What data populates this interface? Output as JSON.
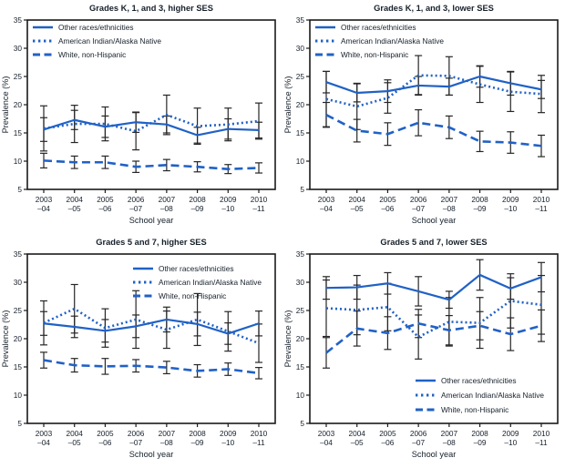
{
  "colors": {
    "line": "#2061C6",
    "error_bar": "#262626",
    "axis": "#1A1A1A",
    "text": "#16202B",
    "background": "#FFFFFF"
  },
  "chart_data": [
    {
      "type": "line",
      "title": "Grades K, 1, and 3, higher SES",
      "xlabel": "School year",
      "ylabel": "Prevalence (%)",
      "ylim": [
        5,
        35
      ],
      "yticks": [
        5,
        10,
        15,
        20,
        25,
        30,
        35
      ],
      "grid": false,
      "legend_position": "top-left",
      "x_labels": [
        [
          "2003",
          "–04"
        ],
        [
          "2004",
          "–05"
        ],
        [
          "2005",
          "–06"
        ],
        [
          "2006",
          "–07"
        ],
        [
          "2007",
          "–08"
        ],
        [
          "2008",
          "–09"
        ],
        [
          "2009",
          "–10"
        ],
        [
          "2010",
          "–11"
        ]
      ],
      "series": [
        {
          "name": "Other races/ethnicities",
          "style": "solid",
          "values": [
            15.6,
            17.3,
            16.1,
            16.9,
            16.5,
            14.6,
            15.7,
            15.5
          ],
          "err": [
            2.1,
            1.7,
            1.9,
            1.8,
            1.5,
            1.4,
            1.8,
            1.4
          ]
        },
        {
          "name": "American Indian/Alaska Native",
          "style": "dotted",
          "values": [
            15.8,
            16.6,
            16.6,
            15.3,
            18.2,
            16.2,
            16.5,
            17.1
          ],
          "err": [
            4.0,
            3.3,
            3.0,
            3.3,
            3.5,
            3.2,
            2.9,
            3.2
          ]
        },
        {
          "name": "White, non-Hispanic",
          "style": "dashed",
          "values": [
            10.1,
            9.8,
            9.8,
            9.0,
            9.3,
            9.0,
            8.6,
            8.8
          ],
          "err": [
            1.3,
            1.1,
            1.1,
            1.0,
            1.0,
            0.9,
            0.8,
            0.9
          ]
        }
      ]
    },
    {
      "type": "line",
      "title": "Grades K, 1, and 3, lower SES",
      "xlabel": "School year",
      "ylabel": "Prevalence (%)",
      "ylim": [
        5,
        35
      ],
      "yticks": [
        5,
        10,
        15,
        20,
        25,
        30,
        35
      ],
      "grid": false,
      "legend_position": "top-left",
      "x_labels": [
        [
          "2003",
          "–04"
        ],
        [
          "2004",
          "–05"
        ],
        [
          "2005",
          "–06"
        ],
        [
          "2006",
          "–07"
        ],
        [
          "2007",
          "–08"
        ],
        [
          "2008",
          "–09"
        ],
        [
          "2009",
          "–10"
        ],
        [
          "2010",
          "–11"
        ]
      ],
      "series": [
        {
          "name": "Other races/ethnicities",
          "style": "solid",
          "values": [
            24.0,
            22.1,
            22.4,
            23.4,
            23.2,
            25.0,
            23.8,
            22.7
          ],
          "err": [
            1.9,
            1.6,
            2.0,
            1.6,
            1.5,
            1.9,
            2.1,
            1.6
          ]
        },
        {
          "name": "American Indian/Alaska Native",
          "style": "dotted",
          "values": [
            21.0,
            19.7,
            21.2,
            25.2,
            25.1,
            23.6,
            22.3,
            21.9
          ],
          "err": [
            4.9,
            4.1,
            2.7,
            3.5,
            3.4,
            3.2,
            3.5,
            3.3
          ]
        },
        {
          "name": "White, non-Hispanic",
          "style": "dashed",
          "values": [
            18.2,
            15.4,
            14.8,
            16.8,
            16.0,
            13.5,
            13.3,
            12.7
          ],
          "err": [
            2.2,
            2.0,
            2.0,
            2.3,
            2.0,
            1.8,
            1.9,
            1.9
          ]
        }
      ]
    },
    {
      "type": "line",
      "title": "Grades 5 and 7, higher SES",
      "xlabel": "School year",
      "ylabel": "Prevalence (%)",
      "ylim": [
        5,
        35
      ],
      "yticks": [
        5,
        10,
        15,
        20,
        25,
        30,
        35
      ],
      "grid": false,
      "legend_position": "top-right",
      "x_labels": [
        [
          "2003",
          "–04"
        ],
        [
          "2004",
          "–05"
        ],
        [
          "2005",
          "–06"
        ],
        [
          "2006",
          "–07"
        ],
        [
          "2007",
          "–08"
        ],
        [
          "2008",
          "–09"
        ],
        [
          "2009",
          "–10"
        ],
        [
          "2010",
          "–11"
        ]
      ],
      "series": [
        {
          "name": "Other races/ethnicities",
          "style": "solid",
          "values": [
            22.7,
            22.1,
            21.4,
            22.2,
            23.4,
            22.6,
            20.9,
            22.7
          ],
          "err": [
            2.1,
            1.9,
            2.0,
            2.0,
            2.2,
            2.1,
            1.9,
            2.2
          ]
        },
        {
          "name": "American Indian/Alaska Native",
          "style": "dotted",
          "values": [
            22.8,
            25.3,
            21.9,
            23.4,
            21.6,
            23.4,
            21.3,
            19.2
          ],
          "err": [
            3.9,
            4.3,
            3.4,
            5.1,
            3.3,
            4.6,
            3.5,
            3.4
          ]
        },
        {
          "name": "White, non-Hispanic",
          "style": "dashed",
          "values": [
            16.2,
            15.3,
            15.1,
            15.2,
            14.9,
            14.3,
            14.6,
            13.9
          ],
          "err": [
            1.4,
            1.2,
            1.4,
            1.1,
            1.1,
            1.1,
            1.1,
            1.0
          ]
        }
      ]
    },
    {
      "type": "line",
      "title": "Grades 5 and 7, lower SES",
      "xlabel": "School year",
      "ylabel": "Prevalence (%)",
      "ylim": [
        5,
        35
      ],
      "yticks": [
        5,
        10,
        15,
        20,
        25,
        30,
        35
      ],
      "grid": false,
      "legend_position": "bottom-right",
      "x_labels": [
        [
          "2003",
          "–04"
        ],
        [
          "2004",
          "–05"
        ],
        [
          "2005",
          "–06"
        ],
        [
          "2006",
          "–07"
        ],
        [
          "2007",
          "–08"
        ],
        [
          "2008",
          "–09"
        ],
        [
          "2009",
          "–10"
        ],
        [
          "2010",
          "–11"
        ]
      ],
      "series": [
        {
          "name": "Other races/ethnicities",
          "style": "solid",
          "values": [
            29.0,
            29.1,
            29.8,
            28.4,
            26.9,
            31.3,
            28.9,
            30.9
          ],
          "err": [
            2.0,
            2.1,
            1.9,
            2.6,
            1.5,
            2.7,
            1.9,
            2.6
          ]
        },
        {
          "name": "American Indian/Alaska Native",
          "style": "dotted",
          "values": [
            25.4,
            25.1,
            25.6,
            20.3,
            23.0,
            22.8,
            26.7,
            26.0
          ],
          "err": [
            5.0,
            4.4,
            4.2,
            3.9,
            4.3,
            4.5,
            4.8,
            5.2
          ]
        },
        {
          "name": "White, non-Hispanic",
          "style": "dashed",
          "values": [
            17.5,
            21.8,
            21.0,
            22.7,
            21.5,
            22.3,
            20.8,
            22.3
          ],
          "err": [
            2.7,
            3.1,
            2.9,
            2.5,
            2.6,
            2.5,
            2.9,
            2.8
          ]
        }
      ]
    }
  ]
}
